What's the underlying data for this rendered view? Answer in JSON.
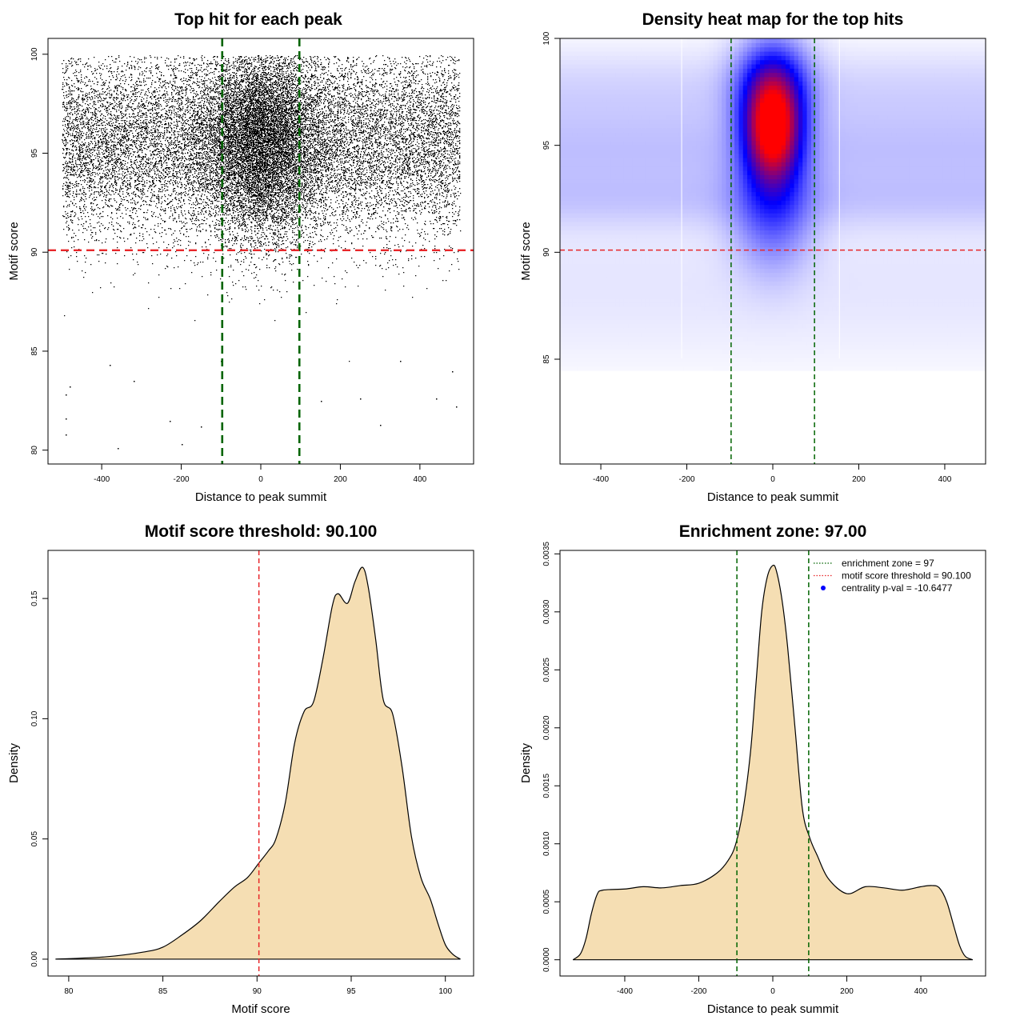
{
  "figure": {
    "background": "#ffffff"
  },
  "colors": {
    "threshold": "#e8272a",
    "zone": "#006400",
    "fill": "#f5deb3",
    "scatter_point": "#000000",
    "heat_low": "#ffffff",
    "heat_mid": "#0000ff",
    "heat_high": "#ff0000",
    "legend_point": "#0000ff"
  },
  "chart_data": [
    {
      "id": "scatter",
      "type": "scatter",
      "title": "Top hit for each peak",
      "xlabel": "Distance to peak summit",
      "ylabel": "Motif score",
      "xlim": [
        -535,
        535
      ],
      "ylim": [
        79.3,
        100.8
      ],
      "xticks": [
        -400,
        -200,
        0,
        200,
        400
      ],
      "xtick_labels": [
        "-400",
        "-200",
        "0",
        "200",
        "400"
      ],
      "yticks": [
        80,
        85,
        90,
        95,
        100
      ],
      "ytick_labels": [
        "80",
        "85",
        "90",
        "95",
        "100"
      ],
      "grid": false,
      "legend": "none",
      "threshold": 90.1,
      "zone": [
        -97,
        97
      ],
      "point_count": 24000,
      "x_range": [
        -500,
        500
      ],
      "central_fraction": 0.38,
      "central_sd": 75,
      "score_mode": 95.5,
      "score_sd": 2.4,
      "notable_points": [
        [
          -360,
          80.1
        ],
        [
          -200,
          80.3
        ],
        [
          -490,
          80.8
        ],
        [
          -490,
          81.6
        ],
        [
          -230,
          81.5
        ],
        [
          -150,
          81.2
        ],
        [
          -490,
          82.8
        ],
        [
          -480,
          83.2
        ],
        [
          -320,
          83.5
        ],
        [
          -380,
          84.3
        ],
        [
          -100,
          84.5
        ],
        [
          150,
          82.5
        ],
        [
          250,
          82.6
        ],
        [
          300,
          81.3
        ],
        [
          440,
          82.6
        ],
        [
          490,
          82.2
        ],
        [
          480,
          84.0
        ],
        [
          350,
          84.5
        ]
      ]
    },
    {
      "id": "heatmap",
      "type": "heatmap",
      "title": "Density heat map for the top hits",
      "xlabel": "Distance to peak summit",
      "ylabel": "Motif score",
      "xlim": [
        -495,
        495
      ],
      "ylim": [
        80.1,
        100
      ],
      "xticks": [
        -400,
        -200,
        0,
        200,
        400
      ],
      "xtick_labels": [
        "-400",
        "-200",
        "0",
        "200",
        "400"
      ],
      "yticks": [
        85,
        90,
        95,
        100
      ],
      "ytick_labels": [
        "85",
        "90",
        "95",
        "100"
      ],
      "grid": false,
      "legend": "none",
      "threshold": 90.1,
      "zone": [
        -97,
        97
      ],
      "color_scale": [
        "white",
        "blue",
        "red"
      ],
      "density_peak": {
        "x": 0,
        "y": 95.8
      },
      "score_range": [
        84.8,
        100
      ]
    },
    {
      "id": "score_density",
      "type": "area",
      "title": "Motif score threshold: 90.100",
      "xlabel": "Motif score",
      "ylabel": "Density",
      "xlim": [
        78.9,
        101.5
      ],
      "ylim": [
        -0.007,
        0.17
      ],
      "xticks": [
        80,
        85,
        90,
        95,
        100
      ],
      "xtick_labels": [
        "80",
        "85",
        "90",
        "95",
        "100"
      ],
      "yticks": [
        0,
        0.05,
        0.1,
        0.15
      ],
      "ytick_labels": [
        "0.00",
        "0.05",
        "0.10",
        "0.15"
      ],
      "grid": false,
      "legend": "none",
      "threshold": 90.1,
      "x": [
        79.3,
        82,
        84,
        85,
        86,
        87,
        88,
        88.8,
        89.5,
        90.1,
        90.6,
        91,
        91.5,
        92,
        92.5,
        93,
        93.5,
        94,
        94.3,
        94.8,
        95.2,
        95.6,
        95.9,
        96.3,
        96.7,
        97.2,
        97.7,
        98.2,
        98.7,
        99.2,
        99.6,
        100,
        100.4,
        100.8
      ],
      "y": [
        0,
        0.001,
        0.003,
        0.005,
        0.01,
        0.016,
        0.024,
        0.03,
        0.034,
        0.04,
        0.045,
        0.05,
        0.065,
        0.09,
        0.103,
        0.107,
        0.125,
        0.147,
        0.152,
        0.148,
        0.157,
        0.163,
        0.155,
        0.133,
        0.108,
        0.102,
        0.08,
        0.051,
        0.034,
        0.025,
        0.015,
        0.006,
        0.002,
        0
      ]
    },
    {
      "id": "distance_density",
      "type": "area",
      "title": "Enrichment zone: 97.00",
      "xlabel": "Distance to peak summit",
      "ylabel": "Density",
      "xlim": [
        -575,
        575
      ],
      "ylim": [
        -0.00014,
        0.00353
      ],
      "xticks": [
        -400,
        -200,
        0,
        200,
        400
      ],
      "xtick_labels": [
        "-400",
        "-200",
        "0",
        "200",
        "400"
      ],
      "yticks": [
        0,
        0.0005,
        0.001,
        0.0015,
        0.002,
        0.0025,
        0.003,
        0.0035
      ],
      "ytick_labels": [
        "0.0000",
        "0.0005",
        "0.0010",
        "0.0015",
        "0.0020",
        "0.0025",
        "0.0030",
        "0.0035"
      ],
      "grid": false,
      "legend": "top-right",
      "zone": [
        -97,
        97
      ],
      "x": [
        -540,
        -520,
        -505,
        -490,
        -475,
        -460,
        -400,
        -350,
        -300,
        -250,
        -200,
        -150,
        -120,
        -100,
        -80,
        -60,
        -45,
        -30,
        -15,
        0,
        10,
        25,
        40,
        60,
        80,
        100,
        120,
        150,
        200,
        250,
        300,
        350,
        400,
        430,
        450,
        470,
        490,
        505,
        520,
        540
      ],
      "y": [
        0,
        5e-05,
        0.00018,
        0.0004,
        0.00056,
        0.0006,
        0.00061,
        0.00063,
        0.00062,
        0.00064,
        0.00066,
        0.00075,
        0.00086,
        0.001,
        0.0013,
        0.0018,
        0.0024,
        0.003,
        0.0033,
        0.0034,
        0.00335,
        0.0031,
        0.0027,
        0.002,
        0.0013,
        0.00105,
        0.0009,
        0.0007,
        0.00057,
        0.00063,
        0.00062,
        0.0006,
        0.00063,
        0.00064,
        0.00062,
        0.0005,
        0.00028,
        0.00012,
        3e-05,
        0
      ],
      "legend_entries": [
        {
          "label": "enrichment zone = 97",
          "symbol": "dotted-line",
          "color": "#006400"
        },
        {
          "label": "motif score threshold = 90.100",
          "symbol": "dotted-line",
          "color": "#e8272a"
        },
        {
          "label": "centrality p-val = -10.6477",
          "symbol": "point",
          "color": "#0000ff"
        }
      ]
    }
  ]
}
